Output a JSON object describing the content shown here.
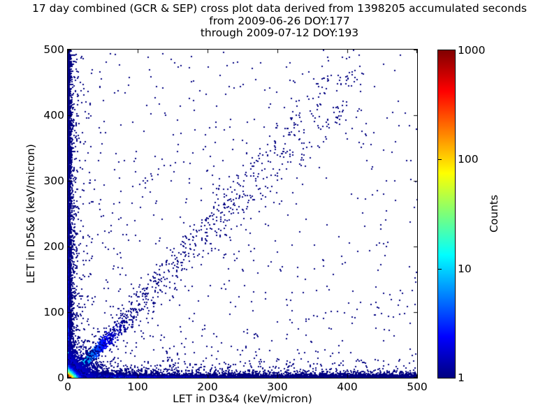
{
  "chart_data": {
    "type": "scatter",
    "subtype": "2d-histogram-density-cross-plot",
    "title": "17 day combined (GCR & SEP) cross plot data derived from 1398205 accumulated seconds",
    "subtitle_from": "from 2009-06-26 DOY:177",
    "subtitle_through": "through 2009-07-12 DOY:193",
    "xlabel": "LET in D3&4 (keV/micron)",
    "ylabel": "LET in D5&6 (keV/micron)",
    "xlim": [
      0,
      500
    ],
    "ylim": [
      0,
      500
    ],
    "xticks": [
      "0",
      "100",
      "200",
      "300",
      "400",
      "500"
    ],
    "yticks": [
      "0",
      "100",
      "200",
      "300",
      "400",
      "500"
    ],
    "grid": false,
    "legend": "none",
    "colorbar": {
      "label": "Counts",
      "scale": "log",
      "min": 1,
      "max": 1000,
      "tick_labels": [
        "1000",
        "100",
        "10",
        "1"
      ],
      "tick_values": [
        1000,
        100,
        10,
        1
      ],
      "colormap": "jet",
      "gradient_stops": [
        {
          "pos": 0,
          "color": "#000080"
        },
        {
          "pos": 0.125,
          "color": "#0000ff"
        },
        {
          "pos": 0.375,
          "color": "#00ffff"
        },
        {
          "pos": 0.5,
          "color": "#7cff79"
        },
        {
          "pos": 0.625,
          "color": "#ffff00"
        },
        {
          "pos": 0.875,
          "color": "#ff0000"
        },
        {
          "pos": 1,
          "color": "#800000"
        }
      ]
    },
    "point_color_low": "#000080",
    "point_color_high": "#800000",
    "seed": 20090626,
    "point_components": [
      {
        "name": "background-sparse",
        "kind": "uniform",
        "n": 170,
        "pow_x": 1.0,
        "pow_y": 1.0,
        "count": 1
      },
      {
        "name": "background-lowerleft",
        "kind": "uniform",
        "n": 880,
        "pow_x": 2.1,
        "pow_y": 1.9,
        "count": 1
      },
      {
        "name": "x-axis-band",
        "kind": "xband",
        "n": 6200,
        "pow": 1.7,
        "yscale": 2.0,
        "amp": 330,
        "fall1": 14,
        "amp2": 6,
        "fall2": 110,
        "base": 1.4
      },
      {
        "name": "x-axis-band-halo",
        "kind": "xband",
        "n": 1100,
        "pow": 1.9,
        "yscale": 8.0,
        "amp": 0,
        "fall1": 14,
        "amp2": 2,
        "fall2": 150,
        "base": 1
      },
      {
        "name": "y-axis-band",
        "kind": "yband",
        "n": 4600,
        "pow": 1.8,
        "xscale": 1.8,
        "amp": 260,
        "fall1": 12,
        "amp2": 4,
        "fall2": 120,
        "base": 1.2
      },
      {
        "name": "y-axis-band-halo",
        "kind": "yband",
        "n": 800,
        "pow": 2.0,
        "xscale": 7.0,
        "amp": 0,
        "fall1": 12,
        "amp2": 1.5,
        "fall2": 150,
        "base": 1
      },
      {
        "name": "diagonal-streak",
        "kind": "diag",
        "n": 2100,
        "xscale": 24,
        "s0": 0.8,
        "sk": 0.09,
        "amp": 45,
        "fall": 15,
        "base": 1
      },
      {
        "name": "diagonal-cloud",
        "kind": "diagcloud",
        "n": 620,
        "x0": 25,
        "xr": 400,
        "pow": 1.25,
        "m0": 0.98,
        "mr": 0.3,
        "noise": 9,
        "count": 1
      },
      {
        "name": "origin-halo",
        "kind": "blob",
        "n": 3200,
        "scale": 11,
        "amp": 5,
        "falloff": 16,
        "base": 1
      },
      {
        "name": "origin-hot-core",
        "kind": "blob",
        "n": 8500,
        "scale": 3.4,
        "amp": 1000,
        "falloff": 3.0,
        "base": 1
      }
    ]
  }
}
